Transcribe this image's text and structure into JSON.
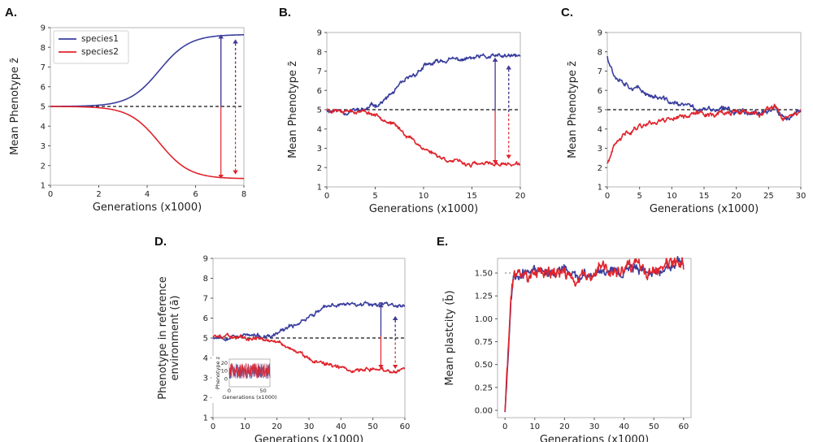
{
  "chart_data": [
    {
      "id": "A",
      "panel_label": "A.",
      "type": "line",
      "xlabel": "Generations (x1000)",
      "ylabel": "Mean Phenotype z̄",
      "xlim": [
        0,
        8
      ],
      "ylim": [
        1,
        9
      ],
      "xticks": [
        0,
        2,
        4,
        6,
        8
      ],
      "yticks": [
        1,
        2,
        3,
        4,
        5,
        6,
        7,
        8,
        9
      ],
      "legend": {
        "position": "top-left",
        "entries": [
          "species1",
          "species2"
        ]
      },
      "reference_line": {
        "y": 5,
        "style": "dashed",
        "color": "#111111"
      },
      "series": [
        {
          "name": "species1",
          "color": "#3a3f9e",
          "shape": "sigmoid",
          "start": 5.0,
          "end": 8.65,
          "midpoint": 4.5,
          "steepness": 1.6,
          "x_range": [
            0,
            8
          ]
        },
        {
          "name": "species2",
          "color": "#e0242c",
          "shape": "sigmoid",
          "start": 5.0,
          "end": 1.33,
          "midpoint": 4.5,
          "steepness": 1.6,
          "x_range": [
            0,
            8
          ]
        }
      ],
      "arrows": [
        {
          "x": 7.05,
          "y1": 8.65,
          "y2": 1.33,
          "color": "#e0242c",
          "style": "solid"
        },
        {
          "x": 7.05,
          "y1": 8.65,
          "y2": 1.33,
          "color": "#3a3f9e",
          "style": "solid",
          "half": "top"
        },
        {
          "x": 7.65,
          "y1": 8.4,
          "y2": 1.55,
          "color": "#e0242c",
          "style": "dashed"
        },
        {
          "x": 7.65,
          "y1": 8.4,
          "y2": 1.55,
          "color": "#3a3f9e",
          "style": "dashed",
          "half": "top"
        }
      ]
    },
    {
      "id": "B",
      "panel_label": "B.",
      "type": "line",
      "xlabel": "Generations (x1000)",
      "ylabel": "Mean Phenotype z̄",
      "xlim": [
        0,
        20
      ],
      "ylim": [
        1,
        9
      ],
      "xticks": [
        0,
        5,
        10,
        15,
        20
      ],
      "yticks": [
        1,
        2,
        3,
        4,
        5,
        6,
        7,
        8,
        9
      ],
      "reference_line": {
        "y": 5,
        "style": "dashed",
        "color": "#111111"
      },
      "series": [
        {
          "name": "species1",
          "color": "#3a3f9e",
          "shape": "keypoints",
          "noise": 0.07,
          "seed": 11,
          "x": [
            0,
            2,
            4,
            5,
            6,
            8,
            10,
            12,
            14,
            16,
            18,
            20
          ],
          "y": [
            5.0,
            4.9,
            5.0,
            5.25,
            5.5,
            6.4,
            7.2,
            7.55,
            7.6,
            7.7,
            7.75,
            7.75
          ]
        },
        {
          "name": "species2",
          "color": "#e0242c",
          "shape": "keypoints",
          "noise": 0.06,
          "seed": 23,
          "x": [
            0,
            2,
            4,
            5,
            6,
            8,
            10,
            12,
            14,
            16,
            18,
            20
          ],
          "y": [
            5.0,
            5.0,
            4.9,
            4.75,
            4.55,
            3.8,
            3.0,
            2.5,
            2.2,
            2.15,
            2.2,
            2.15
          ]
        }
      ],
      "arrows": [
        {
          "x": 17.4,
          "y1": 7.7,
          "y2": 2.18,
          "color": "#e0242c",
          "style": "solid"
        },
        {
          "x": 17.4,
          "y1": 7.7,
          "y2": 2.18,
          "color": "#3a3f9e",
          "style": "solid",
          "half": "top"
        },
        {
          "x": 18.8,
          "y1": 7.3,
          "y2": 2.45,
          "color": "#e0242c",
          "style": "dashed"
        },
        {
          "x": 18.8,
          "y1": 7.3,
          "y2": 2.45,
          "color": "#3a3f9e",
          "style": "dashed",
          "half": "top"
        }
      ]
    },
    {
      "id": "C",
      "panel_label": "C.",
      "type": "line",
      "xlabel": "Generations (x1000)",
      "ylabel": "Mean Phenotype z̄",
      "xlim": [
        0,
        30
      ],
      "ylim": [
        1,
        9
      ],
      "xticks": [
        0,
        5,
        10,
        15,
        20,
        25,
        30
      ],
      "yticks": [
        1,
        2,
        3,
        4,
        5,
        6,
        7,
        8,
        9
      ],
      "reference_line": {
        "y": 5,
        "style": "dashed",
        "color": "#111111"
      },
      "series": [
        {
          "name": "species1",
          "color": "#3a3f9e",
          "shape": "keypoints",
          "noise": 0.08,
          "seed": 37,
          "x": [
            0,
            1,
            3,
            5,
            8,
            10,
            12,
            15,
            20,
            24,
            26,
            27,
            28,
            30
          ],
          "y": [
            7.8,
            6.9,
            6.4,
            6.0,
            5.6,
            5.35,
            5.2,
            5.0,
            4.95,
            4.9,
            5.1,
            4.6,
            4.6,
            4.8
          ]
        },
        {
          "name": "species2",
          "color": "#e0242c",
          "shape": "keypoints",
          "noise": 0.08,
          "seed": 41,
          "x": [
            0,
            1,
            3,
            5,
            8,
            10,
            12,
            15,
            20,
            24,
            26,
            27,
            28,
            30
          ],
          "y": [
            2.2,
            3.0,
            3.8,
            4.2,
            4.45,
            4.6,
            4.75,
            4.8,
            4.85,
            4.8,
            5.1,
            4.55,
            4.55,
            4.8
          ]
        }
      ]
    },
    {
      "id": "D",
      "panel_label": "D.",
      "type": "line",
      "xlabel": "Generations (x1000)",
      "ylabel": "Phenotype in reference environment (ā)",
      "xlim": [
        0,
        60
      ],
      "ylim": [
        1,
        9
      ],
      "xticks": [
        0,
        10,
        20,
        30,
        40,
        50,
        60
      ],
      "yticks": [
        1,
        2,
        3,
        4,
        5,
        6,
        7,
        8,
        9
      ],
      "reference_line": {
        "y": 5,
        "style": "dashed",
        "color": "#111111"
      },
      "series": [
        {
          "name": "species1",
          "color": "#3a3f9e",
          "shape": "keypoints",
          "noise": 0.06,
          "seed": 53,
          "x": [
            0,
            5,
            10,
            15,
            18,
            20,
            25,
            30,
            35,
            40,
            45,
            50,
            55,
            60
          ],
          "y": [
            5.05,
            5.1,
            5.15,
            5.05,
            5.0,
            5.2,
            5.6,
            6.1,
            6.5,
            6.7,
            6.75,
            6.75,
            6.7,
            6.6
          ]
        },
        {
          "name": "species2",
          "color": "#e0242c",
          "shape": "keypoints",
          "noise": 0.06,
          "seed": 59,
          "x": [
            0,
            5,
            10,
            15,
            18,
            20,
            25,
            30,
            35,
            40,
            45,
            50,
            55,
            60
          ],
          "y": [
            5.1,
            5.1,
            5.05,
            5.0,
            4.9,
            4.85,
            4.4,
            4.0,
            3.7,
            3.5,
            3.45,
            3.45,
            3.4,
            3.35
          ]
        }
      ],
      "arrows": [
        {
          "x": 52.5,
          "y1": 6.75,
          "y2": 3.45,
          "color": "#e0242c",
          "style": "solid"
        },
        {
          "x": 52.5,
          "y1": 6.75,
          "y2": 3.45,
          "color": "#3a3f9e",
          "style": "solid",
          "half": "top"
        },
        {
          "x": 57.0,
          "y1": 6.1,
          "y2": 3.45,
          "color": "#e0242c",
          "style": "dashed"
        },
        {
          "x": 57.0,
          "y1": 6.1,
          "y2": 3.45,
          "color": "#3a3f9e",
          "style": "dashed",
          "half": "top"
        }
      ],
      "inset": {
        "type": "line",
        "xlabel": "Generations (x1000)",
        "ylabel": "Phenotype z",
        "xlim": [
          0,
          60
        ],
        "ylim": [
          -10,
          25
        ],
        "xticks": [
          0,
          50
        ],
        "yticks": [
          0,
          10,
          20
        ],
        "band": {
          "low": 0,
          "high": 20
        },
        "series": [
          {
            "name": "species1",
            "color": "#3a3f9e"
          },
          {
            "name": "species2",
            "color": "#e0242c"
          }
        ]
      }
    },
    {
      "id": "E",
      "panel_label": "E.",
      "type": "line",
      "xlabel": "Generations (x1000)",
      "ylabel": "Mean plastcity (b̄)",
      "xlim": [
        -2.5,
        62.5
      ],
      "ylim": [
        -0.08,
        1.66
      ],
      "xticks": [
        0,
        10,
        20,
        30,
        40,
        50,
        60
      ],
      "yticks": [
        0.0,
        0.25,
        0.5,
        0.75,
        1.0,
        1.25,
        1.5
      ],
      "reference_line": {
        "y": 1.5,
        "style": "dotted",
        "color": "#888888",
        "x_range": [
          0,
          3
        ]
      },
      "series": [
        {
          "name": "species1",
          "color": "#3a3f9e",
          "shape": "keypoints",
          "noise": 0.03,
          "seed": 67,
          "x": [
            0,
            2,
            3,
            5,
            8,
            12,
            16,
            20,
            24,
            28,
            32,
            36,
            40,
            44,
            48,
            52,
            56,
            60
          ],
          "y": [
            0.0,
            1.2,
            1.48,
            1.53,
            1.5,
            1.55,
            1.5,
            1.52,
            1.45,
            1.45,
            1.55,
            1.55,
            1.52,
            1.58,
            1.5,
            1.55,
            1.6,
            1.57
          ]
        },
        {
          "name": "species2",
          "color": "#e0242c",
          "shape": "keypoints",
          "noise": 0.04,
          "seed": 71,
          "x": [
            0,
            2,
            3,
            5,
            8,
            12,
            16,
            20,
            24,
            28,
            32,
            36,
            40,
            44,
            48,
            52,
            56,
            60
          ],
          "y": [
            0.0,
            1.2,
            1.48,
            1.5,
            1.47,
            1.52,
            1.48,
            1.5,
            1.42,
            1.43,
            1.55,
            1.52,
            1.5,
            1.57,
            1.48,
            1.53,
            1.58,
            1.55
          ]
        }
      ]
    }
  ]
}
